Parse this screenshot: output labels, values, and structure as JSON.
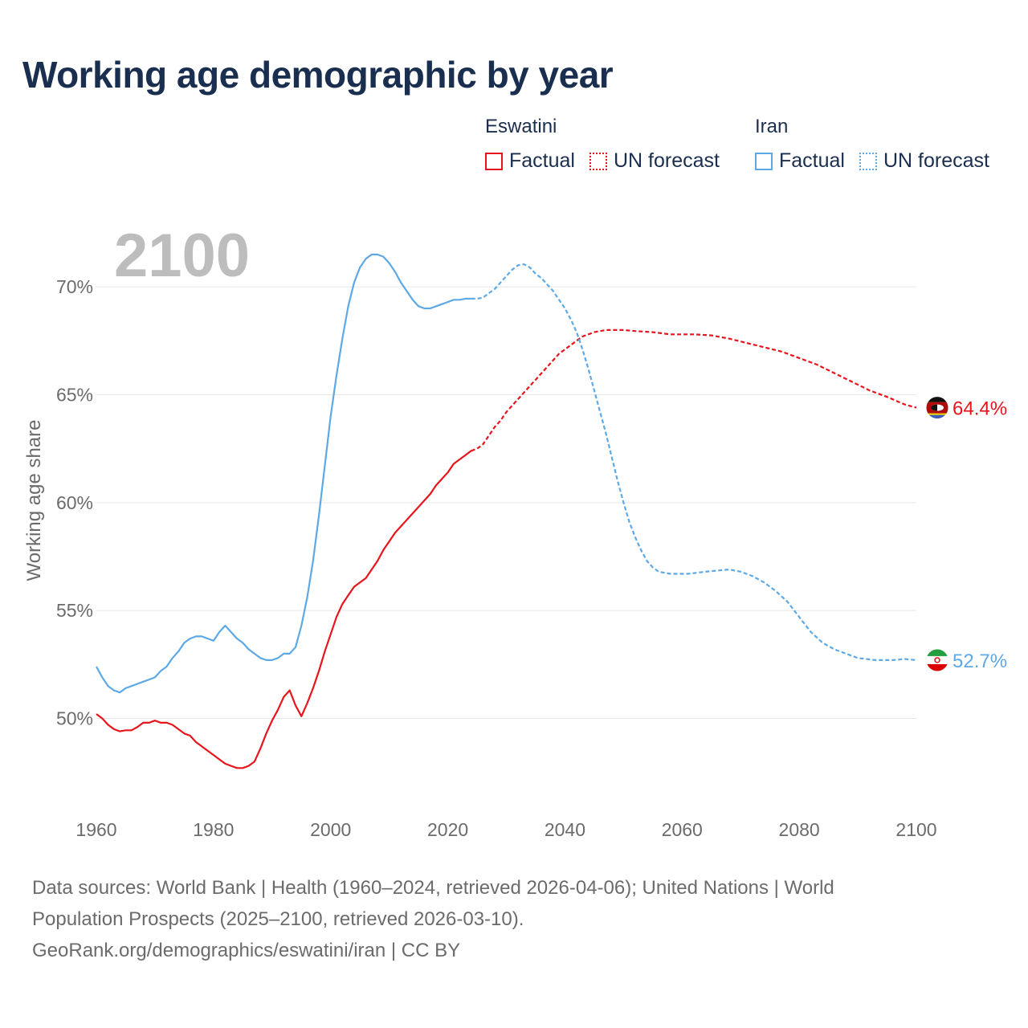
{
  "title": "Working age demographic by year",
  "legend": {
    "groups": [
      {
        "name": "Eswatini",
        "factual_label": "Factual",
        "forecast_label": "UN forecast",
        "color": "#e8141c"
      },
      {
        "name": "Iran",
        "factual_label": "Factual",
        "forecast_label": "UN forecast",
        "color": "#5da9e6"
      }
    ]
  },
  "footer": {
    "line1": "Data sources: World Bank | Health (1960–2024, retrieved 2026-04-06); United Nations | World",
    "line2": "Population Prospects (2025–2100, retrieved 2026-03-10).",
    "line3": "GeoRank.org/demographics/eswatini/iran | CC BY"
  },
  "chart_data": {
    "type": "line",
    "title": "Working age demographic by year",
    "year_watermark": "2100",
    "xlabel": "",
    "ylabel": "Working age share",
    "xlim": [
      1960,
      2100
    ],
    "ylim": [
      45.7,
      72.5
    ],
    "x_ticks": [
      1960,
      1980,
      2000,
      2020,
      2040,
      2060,
      2080,
      2100
    ],
    "x_tick_labels": [
      "1960",
      "1980",
      "2000",
      "2020",
      "2040",
      "2060",
      "2080",
      "2100"
    ],
    "y_ticks": [
      50,
      55,
      60,
      65,
      70
    ],
    "y_tick_labels": [
      "50%",
      "55%",
      "60%",
      "65%",
      "70%"
    ],
    "grid": true,
    "series": [
      {
        "name": "Eswatini",
        "color": "#e8141c",
        "flag_icon": "eswatini-flag-icon",
        "end_label": "64.4%",
        "factual": [
          [
            1960,
            50.2
          ],
          [
            1961,
            50.0
          ],
          [
            1962,
            49.7
          ],
          [
            1963,
            49.5
          ],
          [
            1964,
            49.4
          ],
          [
            1965,
            49.45
          ],
          [
            1966,
            49.45
          ],
          [
            1967,
            49.6
          ],
          [
            1968,
            49.8
          ],
          [
            1969,
            49.8
          ],
          [
            1970,
            49.9
          ],
          [
            1971,
            49.8
          ],
          [
            1972,
            49.8
          ],
          [
            1973,
            49.7
          ],
          [
            1974,
            49.5
          ],
          [
            1975,
            49.3
          ],
          [
            1976,
            49.2
          ],
          [
            1977,
            48.9
          ],
          [
            1978,
            48.7
          ],
          [
            1979,
            48.5
          ],
          [
            1980,
            48.3
          ],
          [
            1981,
            48.1
          ],
          [
            1982,
            47.9
          ],
          [
            1983,
            47.8
          ],
          [
            1984,
            47.7
          ],
          [
            1985,
            47.7
          ],
          [
            1986,
            47.8
          ],
          [
            1987,
            48.0
          ],
          [
            1988,
            48.6
          ],
          [
            1989,
            49.3
          ],
          [
            1990,
            49.9
          ],
          [
            1991,
            50.4
          ],
          [
            1992,
            51.0
          ],
          [
            1993,
            51.3
          ],
          [
            1994,
            50.6
          ],
          [
            1995,
            50.1
          ],
          [
            1996,
            50.7
          ],
          [
            1997,
            51.4
          ],
          [
            1998,
            52.2
          ],
          [
            1999,
            53.1
          ],
          [
            2000,
            53.9
          ],
          [
            2001,
            54.7
          ],
          [
            2002,
            55.3
          ],
          [
            2003,
            55.7
          ],
          [
            2004,
            56.1
          ],
          [
            2005,
            56.3
          ],
          [
            2006,
            56.5
          ],
          [
            2007,
            56.9
          ],
          [
            2008,
            57.3
          ],
          [
            2009,
            57.8
          ],
          [
            2010,
            58.2
          ],
          [
            2011,
            58.6
          ],
          [
            2012,
            58.9
          ],
          [
            2013,
            59.2
          ],
          [
            2014,
            59.5
          ],
          [
            2015,
            59.8
          ],
          [
            2016,
            60.1
          ],
          [
            2017,
            60.4
          ],
          [
            2018,
            60.8
          ],
          [
            2019,
            61.1
          ],
          [
            2020,
            61.4
          ],
          [
            2021,
            61.8
          ],
          [
            2022,
            62.0
          ],
          [
            2023,
            62.2
          ],
          [
            2024,
            62.4
          ]
        ],
        "forecast": [
          [
            2024,
            62.4
          ],
          [
            2025,
            62.5
          ],
          [
            2026,
            62.7
          ],
          [
            2027,
            63.1
          ],
          [
            2028,
            63.5
          ],
          [
            2029,
            63.8
          ],
          [
            2030,
            64.2
          ],
          [
            2031,
            64.5
          ],
          [
            2032,
            64.8
          ],
          [
            2033,
            65.1
          ],
          [
            2034,
            65.4
          ],
          [
            2035,
            65.7
          ],
          [
            2036,
            66.0
          ],
          [
            2037,
            66.3
          ],
          [
            2038,
            66.6
          ],
          [
            2039,
            66.9
          ],
          [
            2040,
            67.1
          ],
          [
            2041,
            67.3
          ],
          [
            2042,
            67.5
          ],
          [
            2043,
            67.7
          ],
          [
            2044,
            67.8
          ],
          [
            2045,
            67.9
          ],
          [
            2046,
            67.95
          ],
          [
            2047,
            68.0
          ],
          [
            2048,
            68.0
          ],
          [
            2050,
            68.0
          ],
          [
            2052,
            67.95
          ],
          [
            2055,
            67.9
          ],
          [
            2058,
            67.8
          ],
          [
            2062,
            67.8
          ],
          [
            2065,
            67.75
          ],
          [
            2068,
            67.6
          ],
          [
            2071,
            67.4
          ],
          [
            2074,
            67.2
          ],
          [
            2077,
            67.0
          ],
          [
            2080,
            66.7
          ],
          [
            2083,
            66.4
          ],
          [
            2086,
            66.0
          ],
          [
            2089,
            65.6
          ],
          [
            2092,
            65.2
          ],
          [
            2095,
            64.9
          ],
          [
            2098,
            64.55
          ],
          [
            2100,
            64.4
          ]
        ]
      },
      {
        "name": "Iran",
        "color": "#5da9e6",
        "flag_icon": "iran-flag-icon",
        "end_label": "52.7%",
        "factual": [
          [
            1960,
            52.4
          ],
          [
            1961,
            51.9
          ],
          [
            1962,
            51.5
          ],
          [
            1963,
            51.3
          ],
          [
            1964,
            51.2
          ],
          [
            1965,
            51.4
          ],
          [
            1966,
            51.5
          ],
          [
            1967,
            51.6
          ],
          [
            1968,
            51.7
          ],
          [
            1969,
            51.8
          ],
          [
            1970,
            51.9
          ],
          [
            1971,
            52.2
          ],
          [
            1972,
            52.4
          ],
          [
            1973,
            52.8
          ],
          [
            1974,
            53.1
          ],
          [
            1975,
            53.5
          ],
          [
            1976,
            53.7
          ],
          [
            1977,
            53.8
          ],
          [
            1978,
            53.8
          ],
          [
            1979,
            53.7
          ],
          [
            1980,
            53.6
          ],
          [
            1981,
            54.0
          ],
          [
            1982,
            54.3
          ],
          [
            1983,
            54.0
          ],
          [
            1984,
            53.7
          ],
          [
            1985,
            53.5
          ],
          [
            1986,
            53.2
          ],
          [
            1987,
            53.0
          ],
          [
            1988,
            52.8
          ],
          [
            1989,
            52.7
          ],
          [
            1990,
            52.7
          ],
          [
            1991,
            52.8
          ],
          [
            1992,
            53.0
          ],
          [
            1993,
            53.0
          ],
          [
            1994,
            53.3
          ],
          [
            1995,
            54.3
          ],
          [
            1996,
            55.6
          ],
          [
            1997,
            57.3
          ],
          [
            1998,
            59.4
          ],
          [
            1999,
            61.7
          ],
          [
            2000,
            64.0
          ],
          [
            2001,
            65.9
          ],
          [
            2002,
            67.6
          ],
          [
            2003,
            69.1
          ],
          [
            2004,
            70.2
          ],
          [
            2005,
            70.9
          ],
          [
            2006,
            71.3
          ],
          [
            2007,
            71.5
          ],
          [
            2008,
            71.5
          ],
          [
            2009,
            71.4
          ],
          [
            2010,
            71.1
          ],
          [
            2011,
            70.7
          ],
          [
            2012,
            70.2
          ],
          [
            2013,
            69.8
          ],
          [
            2014,
            69.4
          ],
          [
            2015,
            69.1
          ],
          [
            2016,
            69.0
          ],
          [
            2017,
            69.0
          ],
          [
            2018,
            69.1
          ],
          [
            2019,
            69.2
          ],
          [
            2020,
            69.3
          ],
          [
            2021,
            69.4
          ],
          [
            2022,
            69.4
          ],
          [
            2023,
            69.45
          ],
          [
            2024,
            69.45
          ]
        ],
        "forecast": [
          [
            2024,
            69.45
          ],
          [
            2025,
            69.45
          ],
          [
            2026,
            69.5
          ],
          [
            2027,
            69.7
          ],
          [
            2028,
            69.9
          ],
          [
            2029,
            70.2
          ],
          [
            2030,
            70.5
          ],
          [
            2031,
            70.8
          ],
          [
            2032,
            71.0
          ],
          [
            2033,
            71.05
          ],
          [
            2034,
            70.9
          ],
          [
            2035,
            70.6
          ],
          [
            2036,
            70.4
          ],
          [
            2037,
            70.1
          ],
          [
            2038,
            69.8
          ],
          [
            2039,
            69.4
          ],
          [
            2040,
            69.0
          ],
          [
            2041,
            68.5
          ],
          [
            2042,
            67.9
          ],
          [
            2043,
            67.1
          ],
          [
            2044,
            66.2
          ],
          [
            2045,
            65.2
          ],
          [
            2046,
            64.2
          ],
          [
            2047,
            63.2
          ],
          [
            2048,
            62.1
          ],
          [
            2049,
            61.0
          ],
          [
            2050,
            60.0
          ],
          [
            2051,
            59.1
          ],
          [
            2052,
            58.4
          ],
          [
            2053,
            57.8
          ],
          [
            2054,
            57.3
          ],
          [
            2055,
            57.0
          ],
          [
            2056,
            56.8
          ],
          [
            2058,
            56.7
          ],
          [
            2061,
            56.7
          ],
          [
            2064,
            56.8
          ],
          [
            2068,
            56.9
          ],
          [
            2070,
            56.8
          ],
          [
            2072,
            56.6
          ],
          [
            2074,
            56.3
          ],
          [
            2076,
            55.9
          ],
          [
            2078,
            55.4
          ],
          [
            2080,
            54.7
          ],
          [
            2082,
            54.0
          ],
          [
            2084,
            53.5
          ],
          [
            2086,
            53.2
          ],
          [
            2088,
            53.0
          ],
          [
            2090,
            52.8
          ],
          [
            2093,
            52.7
          ],
          [
            2096,
            52.7
          ],
          [
            2098,
            52.75
          ],
          [
            2100,
            52.7
          ]
        ]
      }
    ]
  }
}
